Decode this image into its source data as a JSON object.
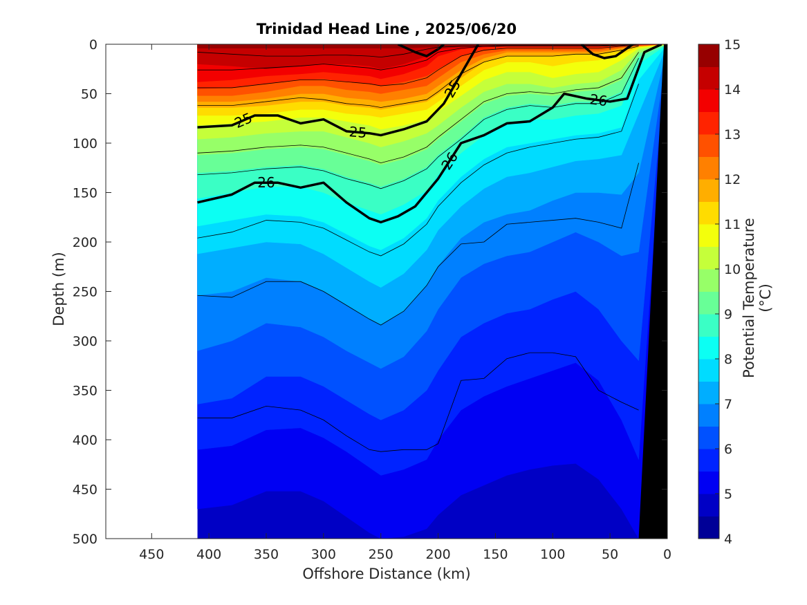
{
  "chart_data": {
    "type": "heatmap",
    "subtype": "filled-contour section",
    "title": "Trinidad Head Line , 2025/06/20",
    "xlabel": "Offshore Distance (km)",
    "ylabel": "Depth (m)",
    "colorbar_label": "Potential Temperature (°C)",
    "xlim": [
      490,
      0
    ],
    "ylim": [
      0,
      500
    ],
    "x_reversed": true,
    "y_reversed": true,
    "xticks": [
      450,
      400,
      350,
      300,
      250,
      200,
      150,
      100,
      50,
      0
    ],
    "yticks": [
      0,
      50,
      100,
      150,
      200,
      250,
      300,
      350,
      400,
      450,
      500
    ],
    "colorbar": {
      "ticks": [
        4,
        5,
        6,
        7,
        8,
        9,
        10,
        11,
        12,
        13,
        14,
        15
      ],
      "range": [
        4,
        15
      ],
      "step": 0.5,
      "colormap": "jet"
    },
    "data_extent_km": [
      410,
      0
    ],
    "temperature_isotherms": {
      "depth_by_distance_km": [
        410,
        380,
        350,
        320,
        300,
        280,
        260,
        250,
        230,
        210,
        200,
        180,
        160,
        140,
        120,
        100,
        80,
        60,
        40,
        25
      ],
      "temp_profile": [
        {
          "t": 14.5,
          "depths": [
            4,
            4,
            4,
            4,
            4,
            4,
            4,
            4,
            4,
            3,
            3,
            2,
            2,
            1,
            1,
            1,
            1,
            1,
            0.5,
            0.3
          ]
        },
        {
          "t": 14,
          "depths": [
            20,
            22,
            25,
            22,
            20,
            20,
            22,
            25,
            20,
            12,
            5,
            3,
            2,
            1,
            1,
            1,
            1,
            1,
            1,
            0.5
          ]
        },
        {
          "t": 13.5,
          "depths": [
            38,
            36,
            32,
            30,
            28,
            30,
            32,
            35,
            30,
            22,
            12,
            5,
            3,
            2,
            2,
            2,
            2,
            2,
            1,
            1
          ]
        },
        {
          "t": 13,
          "depths": [
            45,
            44,
            40,
            36,
            35,
            38,
            40,
            42,
            38,
            32,
            25,
            12,
            6,
            4,
            4,
            4,
            4,
            4,
            2,
            1
          ]
        },
        {
          "t": 12.5,
          "depths": [
            52,
            52,
            48,
            42,
            42,
            46,
            48,
            50,
            46,
            42,
            34,
            18,
            10,
            6,
            6,
            6,
            6,
            6,
            3,
            1
          ]
        },
        {
          "t": 12,
          "depths": [
            58,
            58,
            55,
            50,
            50,
            54,
            56,
            58,
            55,
            50,
            42,
            26,
            14,
            8,
            8,
            8,
            8,
            8,
            4,
            2
          ]
        },
        {
          "t": 11.5,
          "depths": [
            64,
            64,
            62,
            58,
            58,
            62,
            64,
            66,
            62,
            58,
            50,
            34,
            18,
            12,
            12,
            12,
            10,
            10,
            6,
            2
          ]
        },
        {
          "t": 11,
          "depths": [
            72,
            72,
            70,
            66,
            66,
            70,
            72,
            74,
            70,
            66,
            58,
            42,
            26,
            18,
            18,
            22,
            18,
            16,
            10,
            3
          ]
        },
        {
          "t": 10.5,
          "depths": [
            82,
            80,
            78,
            74,
            74,
            78,
            82,
            86,
            82,
            76,
            68,
            52,
            36,
            28,
            28,
            34,
            30,
            28,
            16,
            4
          ]
        },
        {
          "t": 10,
          "depths": [
            96,
            94,
            90,
            88,
            88,
            94,
            100,
            104,
            98,
            90,
            82,
            64,
            48,
            40,
            40,
            44,
            40,
            38,
            26,
            6
          ]
        },
        {
          "t": 9.5,
          "depths": [
            112,
            110,
            106,
            104,
            106,
            112,
            118,
            122,
            116,
            106,
            96,
            78,
            60,
            52,
            50,
            52,
            48,
            46,
            36,
            9
          ]
        },
        {
          "t": 9,
          "depths": [
            130,
            128,
            124,
            122,
            126,
            134,
            140,
            144,
            136,
            124,
            112,
            94,
            74,
            64,
            60,
            62,
            58,
            58,
            48,
            13
          ]
        },
        {
          "t": 8.5,
          "depths": [
            156,
            150,
            144,
            144,
            150,
            160,
            168,
            172,
            162,
            148,
            132,
            110,
            92,
            80,
            76,
            76,
            72,
            70,
            62,
            20
          ]
        },
        {
          "t": 8,
          "depths": [
            184,
            178,
            172,
            174,
            180,
            192,
            204,
            208,
            196,
            176,
            158,
            134,
            116,
            104,
            100,
            96,
            92,
            90,
            84,
            36
          ]
        },
        {
          "t": 7.5,
          "depths": [
            212,
            206,
            200,
            202,
            212,
            226,
            240,
            246,
            232,
            208,
            188,
            164,
            146,
            134,
            130,
            124,
            118,
            116,
            112,
            70
          ]
        },
        {
          "t": 7,
          "depths": [
            254,
            250,
            236,
            240,
            250,
            264,
            278,
            284,
            270,
            244,
            224,
            196,
            180,
            172,
            168,
            158,
            150,
            150,
            152,
            130
          ]
        },
        {
          "t": 6.5,
          "depths": [
            310,
            300,
            282,
            286,
            296,
            310,
            322,
            328,
            316,
            290,
            268,
            236,
            222,
            214,
            210,
            200,
            190,
            200,
            214,
            210
          ]
        },
        {
          "t": 6,
          "depths": [
            364,
            358,
            336,
            336,
            346,
            360,
            374,
            380,
            370,
            350,
            330,
            296,
            282,
            272,
            268,
            258,
            250,
            268,
            300,
            320
          ]
        },
        {
          "t": 5.5,
          "depths": [
            410,
            406,
            390,
            388,
            398,
            412,
            428,
            436,
            430,
            420,
            400,
            370,
            356,
            346,
            338,
            330,
            322,
            340,
            380,
            420
          ]
        },
        {
          "t": 5,
          "depths": [
            470,
            466,
            452,
            452,
            462,
            478,
            494,
            500,
            498,
            490,
            476,
            456,
            446,
            436,
            430,
            426,
            424,
            440,
            470,
            500
          ]
        }
      ]
    },
    "density_contours": [
      {
        "value": 25,
        "labelled": true,
        "labels": [
          "25",
          "25",
          "25"
        ],
        "points": [
          [
            410,
            84
          ],
          [
            380,
            82
          ],
          [
            360,
            72
          ],
          [
            340,
            72
          ],
          [
            320,
            80
          ],
          [
            300,
            76
          ],
          [
            280,
            88
          ],
          [
            260,
            90
          ],
          [
            250,
            92
          ],
          [
            230,
            86
          ],
          [
            210,
            78
          ],
          [
            195,
            60
          ],
          [
            180,
            30
          ],
          [
            165,
            0
          ]
        ]
      },
      {
        "value": 26,
        "labelled": true,
        "labels": [
          "26",
          "26",
          "26"
        ],
        "points": [
          [
            410,
            160
          ],
          [
            380,
            152
          ],
          [
            360,
            140
          ],
          [
            340,
            140
          ],
          [
            320,
            145
          ],
          [
            300,
            140
          ],
          [
            280,
            160
          ],
          [
            260,
            176
          ],
          [
            250,
            180
          ],
          [
            235,
            174
          ],
          [
            220,
            164
          ],
          [
            200,
            136
          ],
          [
            180,
            100
          ],
          [
            160,
            92
          ],
          [
            140,
            80
          ],
          [
            120,
            78
          ],
          [
            100,
            64
          ],
          [
            90,
            50
          ],
          [
            70,
            55
          ],
          [
            50,
            58
          ],
          [
            35,
            55
          ],
          [
            20,
            8
          ],
          [
            5,
            0
          ]
        ]
      },
      {
        "value": 25,
        "segment": "surface-south",
        "labelled": false,
        "points": [
          [
            235,
            0
          ],
          [
            220,
            8
          ],
          [
            210,
            12
          ],
          [
            200,
            5
          ],
          [
            195,
            0
          ]
        ]
      },
      {
        "value": 25,
        "segment": "surface-north",
        "labelled": false,
        "points": [
          [
            75,
            0
          ],
          [
            65,
            10
          ],
          [
            55,
            14
          ],
          [
            45,
            12
          ],
          [
            35,
            4
          ],
          [
            30,
            0
          ]
        ]
      }
    ],
    "thin_contours_depth_by_distance_km": {
      "x": [
        410,
        380,
        350,
        320,
        300,
        280,
        260,
        250,
        230,
        210,
        200,
        180,
        160,
        140,
        120,
        100,
        80,
        60,
        40,
        25
      ],
      "lines": [
        [
          8,
          10,
          12,
          12,
          11,
          11,
          12,
          13,
          10,
          5,
          3,
          2,
          2,
          1,
          1,
          1,
          1,
          1,
          1,
          0
        ],
        [
          26,
          26,
          24,
          22,
          20,
          22,
          24,
          26,
          22,
          16,
          8,
          4,
          2,
          2,
          2,
          2,
          2,
          2,
          1,
          0
        ],
        [
          44,
          44,
          40,
          36,
          36,
          38,
          40,
          42,
          40,
          34,
          26,
          12,
          6,
          4,
          4,
          4,
          4,
          4,
          2,
          1
        ],
        [
          62,
          62,
          58,
          54,
          56,
          60,
          62,
          64,
          60,
          56,
          48,
          30,
          18,
          12,
          12,
          12,
          10,
          10,
          6,
          2
        ],
        [
          110,
          108,
          104,
          102,
          104,
          110,
          116,
          120,
          114,
          104,
          94,
          76,
          58,
          50,
          48,
          50,
          46,
          44,
          34,
          8
        ],
        [
          132,
          130,
          126,
          124,
          128,
          136,
          142,
          146,
          138,
          126,
          114,
          96,
          76,
          66,
          62,
          64,
          60,
          60,
          50,
          14
        ],
        [
          196,
          190,
          178,
          180,
          186,
          198,
          210,
          214,
          202,
          182,
          164,
          140,
          122,
          110,
          104,
          100,
          96,
          94,
          88,
          40
        ],
        [
          254,
          256,
          240,
          240,
          250,
          264,
          278,
          284,
          270,
          244,
          225,
          202,
          200,
          182,
          180,
          178,
          176,
          180,
          186,
          120
        ],
        [
          378,
          378,
          366,
          370,
          380,
          396,
          410,
          412,
          410,
          410,
          404,
          340,
          338,
          318,
          312,
          312,
          316,
          350,
          362,
          370
        ]
      ]
    },
    "bathymetry": {
      "color": "#000000",
      "points": [
        [
          0,
          0
        ],
        [
          3,
          0
        ],
        [
          25,
          500
        ],
        [
          0,
          500
        ]
      ]
    }
  }
}
